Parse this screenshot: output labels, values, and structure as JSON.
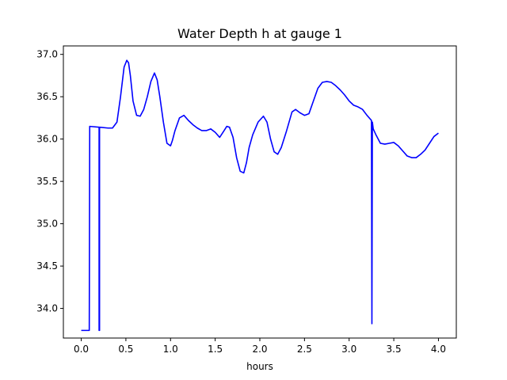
{
  "chart_data": {
    "type": "line",
    "title": "Water Depth h at gauge 1",
    "xlabel": "hours",
    "ylabel": "",
    "xlim": [
      -0.2,
      4.2
    ],
    "ylim": [
      33.65,
      37.1
    ],
    "xticks": [
      0.0,
      0.5,
      1.0,
      1.5,
      2.0,
      2.5,
      3.0,
      3.5,
      4.0
    ],
    "xtick_labels": [
      "0.0",
      "0.5",
      "1.0",
      "1.5",
      "2.0",
      "2.5",
      "3.0",
      "3.5",
      "4.0"
    ],
    "yticks": [
      34.0,
      34.5,
      35.0,
      35.5,
      36.0,
      36.5,
      37.0
    ],
    "ytick_labels": [
      "34.0",
      "34.5",
      "35.0",
      "35.5",
      "36.0",
      "36.5",
      "37.0"
    ],
    "grid": false,
    "series": [
      {
        "color": "#0000ff",
        "x": [
          0.0,
          0.09,
          0.095,
          0.2,
          0.2,
          0.205,
          0.205,
          0.3,
          0.35,
          0.4,
          0.44,
          0.48,
          0.51,
          0.53,
          0.55,
          0.58,
          0.62,
          0.66,
          0.7,
          0.74,
          0.78,
          0.82,
          0.85,
          0.88,
          0.92,
          0.96,
          1.0,
          1.02,
          1.05,
          1.1,
          1.15,
          1.2,
          1.25,
          1.3,
          1.35,
          1.4,
          1.45,
          1.5,
          1.55,
          1.6,
          1.63,
          1.66,
          1.7,
          1.74,
          1.78,
          1.82,
          1.85,
          1.88,
          1.92,
          1.98,
          2.04,
          2.08,
          2.12,
          2.16,
          2.2,
          2.24,
          2.3,
          2.36,
          2.4,
          2.45,
          2.5,
          2.55,
          2.6,
          2.65,
          2.7,
          2.75,
          2.8,
          2.85,
          2.9,
          2.95,
          3.0,
          3.05,
          3.1,
          3.15,
          3.2,
          3.25,
          3.255,
          3.26,
          3.27,
          3.3,
          3.35,
          3.4,
          3.45,
          3.5,
          3.55,
          3.6,
          3.65,
          3.7,
          3.75,
          3.8,
          3.85,
          3.9,
          3.95,
          4.0
        ],
        "y": [
          33.74,
          33.74,
          36.15,
          36.14,
          33.74,
          33.74,
          36.14,
          36.13,
          36.13,
          36.2,
          36.5,
          36.85,
          36.93,
          36.9,
          36.75,
          36.45,
          36.28,
          36.27,
          36.35,
          36.5,
          36.68,
          36.78,
          36.7,
          36.5,
          36.2,
          35.95,
          35.92,
          35.98,
          36.1,
          36.25,
          36.28,
          36.22,
          36.17,
          36.13,
          36.1,
          36.1,
          36.12,
          36.08,
          36.02,
          36.1,
          36.15,
          36.14,
          36.02,
          35.78,
          35.62,
          35.6,
          35.72,
          35.9,
          36.05,
          36.2,
          36.27,
          36.2,
          36.0,
          35.85,
          35.82,
          35.9,
          36.1,
          36.32,
          36.35,
          36.31,
          36.28,
          36.3,
          36.45,
          36.6,
          36.67,
          36.68,
          36.67,
          36.63,
          36.58,
          36.52,
          36.45,
          36.4,
          36.38,
          36.35,
          36.28,
          36.22,
          33.82,
          36.2,
          36.12,
          36.05,
          35.95,
          35.94,
          35.95,
          35.96,
          35.92,
          35.86,
          35.8,
          35.78,
          35.78,
          35.82,
          35.87,
          35.95,
          36.03,
          36.07
        ]
      }
    ]
  }
}
